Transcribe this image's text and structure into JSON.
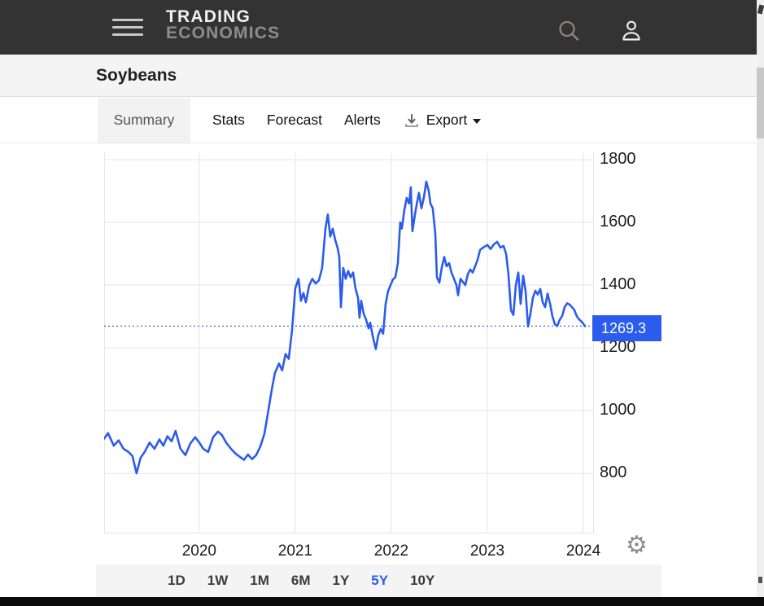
{
  "title": "Soybeans",
  "header": {
    "logo_line1": "TRADING",
    "logo_line2": "ECONOMICS"
  },
  "icons": {
    "menu": "hamburger",
    "search": "magnifier",
    "user": "person-silhouette",
    "export": "download-arrow-tray",
    "export_caret": "caret-down",
    "settings": "gear"
  },
  "tabs": [
    {
      "label": "Summary",
      "active": true
    },
    {
      "label": "Stats",
      "active": false
    },
    {
      "label": "Forecast",
      "active": false
    },
    {
      "label": "Alerts",
      "active": false
    }
  ],
  "export_button": {
    "label": "Export"
  },
  "range_buttons": {
    "items": [
      "1D",
      "1W",
      "1M",
      "6M",
      "1Y",
      "5Y",
      "10Y"
    ],
    "active": "5Y"
  },
  "colors": {
    "accent": "#2b5ced",
    "grid": "#e6e6e6",
    "header_bg": "#333333",
    "bar_bg": "#f4f4f4",
    "scroll_track": "#f0f0f0",
    "scroll_thumb": "#c8c8c8"
  },
  "chart_data": {
    "type": "line",
    "title": "",
    "series_name": "Soybeans",
    "current_value": 1269.3,
    "current_value_label": "1269.3",
    "y_ticks": [
      800,
      1000,
      1200,
      1400,
      1600,
      1800
    ],
    "x_ticks": [
      2020,
      2021,
      2022,
      2023,
      2024
    ],
    "xlim": [
      2019.01,
      2024.11
    ],
    "ylim": [
      608,
      1826
    ],
    "grid": true,
    "legend": "none",
    "points": [
      [
        2019.008,
        910
      ],
      [
        2019.051,
        928
      ],
      [
        2019.11,
        888
      ],
      [
        2019.161,
        905
      ],
      [
        2019.212,
        878
      ],
      [
        2019.263,
        868
      ],
      [
        2019.305,
        855
      ],
      [
        2019.347,
        800
      ],
      [
        2019.39,
        850
      ],
      [
        2019.432,
        868
      ],
      [
        2019.483,
        898
      ],
      [
        2019.534,
        878
      ],
      [
        2019.585,
        908
      ],
      [
        2019.627,
        888
      ],
      [
        2019.669,
        918
      ],
      [
        2019.712,
        902
      ],
      [
        2019.754,
        935
      ],
      [
        2019.805,
        878
      ],
      [
        2019.856,
        858
      ],
      [
        2019.907,
        895
      ],
      [
        2019.958,
        915
      ],
      [
        2020.0,
        898
      ],
      [
        2020.042,
        878
      ],
      [
        2020.093,
        868
      ],
      [
        2020.144,
        915
      ],
      [
        2020.195,
        933
      ],
      [
        2020.237,
        922
      ],
      [
        2020.28,
        898
      ],
      [
        2020.331,
        878
      ],
      [
        2020.381,
        862
      ],
      [
        2020.424,
        852
      ],
      [
        2020.466,
        843
      ],
      [
        2020.508,
        860
      ],
      [
        2020.551,
        845
      ],
      [
        2020.593,
        858
      ],
      [
        2020.636,
        885
      ],
      [
        2020.678,
        925
      ],
      [
        2020.72,
        1000
      ],
      [
        2020.754,
        1065
      ],
      [
        2020.788,
        1120
      ],
      [
        2020.831,
        1150
      ],
      [
        2020.864,
        1128
      ],
      [
        2020.898,
        1180
      ],
      [
        2020.932,
        1165
      ],
      [
        2020.966,
        1255
      ],
      [
        2021.0,
        1390
      ],
      [
        2021.034,
        1420
      ],
      [
        2021.059,
        1350
      ],
      [
        2021.085,
        1375
      ],
      [
        2021.11,
        1345
      ],
      [
        2021.144,
        1398
      ],
      [
        2021.178,
        1420
      ],
      [
        2021.212,
        1405
      ],
      [
        2021.246,
        1415
      ],
      [
        2021.28,
        1455
      ],
      [
        2021.314,
        1580
      ],
      [
        2021.339,
        1625
      ],
      [
        2021.364,
        1555
      ],
      [
        2021.39,
        1580
      ],
      [
        2021.415,
        1545
      ],
      [
        2021.441,
        1518
      ],
      [
        2021.458,
        1490
      ],
      [
        2021.475,
        1330
      ],
      [
        2021.5,
        1455
      ],
      [
        2021.525,
        1420
      ],
      [
        2021.551,
        1445
      ],
      [
        2021.576,
        1425
      ],
      [
        2021.602,
        1440
      ],
      [
        2021.627,
        1390
      ],
      [
        2021.653,
        1360
      ],
      [
        2021.669,
        1296
      ],
      [
        2021.686,
        1350
      ],
      [
        2021.712,
        1310
      ],
      [
        2021.737,
        1290
      ],
      [
        2021.763,
        1262
      ],
      [
        2021.78,
        1280
      ],
      [
        2021.805,
        1240
      ],
      [
        2021.822,
        1218
      ],
      [
        2021.839,
        1196
      ],
      [
        2021.864,
        1240
      ],
      [
        2021.89,
        1260
      ],
      [
        2021.915,
        1245
      ],
      [
        2021.941,
        1340
      ],
      [
        2021.966,
        1380
      ],
      [
        2021.992,
        1400
      ],
      [
        2022.017,
        1418
      ],
      [
        2022.042,
        1425
      ],
      [
        2022.068,
        1470
      ],
      [
        2022.093,
        1600
      ],
      [
        2022.11,
        1580
      ],
      [
        2022.136,
        1640
      ],
      [
        2022.161,
        1678
      ],
      [
        2022.186,
        1660
      ],
      [
        2022.203,
        1712
      ],
      [
        2022.22,
        1572
      ],
      [
        2022.246,
        1625
      ],
      [
        2022.263,
        1655
      ],
      [
        2022.288,
        1694
      ],
      [
        2022.314,
        1645
      ],
      [
        2022.339,
        1680
      ],
      [
        2022.364,
        1730
      ],
      [
        2022.39,
        1700
      ],
      [
        2022.407,
        1660
      ],
      [
        2022.432,
        1645
      ],
      [
        2022.458,
        1564
      ],
      [
        2022.475,
        1425
      ],
      [
        2022.5,
        1408
      ],
      [
        2022.525,
        1455
      ],
      [
        2022.551,
        1490
      ],
      [
        2022.576,
        1460
      ],
      [
        2022.602,
        1470
      ],
      [
        2022.627,
        1440
      ],
      [
        2022.653,
        1420
      ],
      [
        2022.678,
        1400
      ],
      [
        2022.695,
        1368
      ],
      [
        2022.72,
        1420
      ],
      [
        2022.746,
        1410
      ],
      [
        2022.771,
        1400
      ],
      [
        2022.797,
        1435
      ],
      [
        2022.822,
        1450
      ],
      [
        2022.847,
        1440
      ],
      [
        2022.873,
        1460
      ],
      [
        2022.898,
        1480
      ],
      [
        2022.924,
        1512
      ],
      [
        2022.958,
        1520
      ],
      [
        2023.0,
        1528
      ],
      [
        2023.034,
        1515
      ],
      [
        2023.068,
        1530
      ],
      [
        2023.102,
        1538
      ],
      [
        2023.136,
        1520
      ],
      [
        2023.169,
        1525
      ],
      [
        2023.195,
        1500
      ],
      [
        2023.22,
        1435
      ],
      [
        2023.246,
        1320
      ],
      [
        2023.271,
        1305
      ],
      [
        2023.297,
        1400
      ],
      [
        2023.322,
        1440
      ],
      [
        2023.347,
        1340
      ],
      [
        2023.373,
        1430
      ],
      [
        2023.398,
        1380
      ],
      [
        2023.424,
        1268
      ],
      [
        2023.449,
        1310
      ],
      [
        2023.475,
        1360
      ],
      [
        2023.5,
        1382
      ],
      [
        2023.525,
        1370
      ],
      [
        2023.551,
        1388
      ],
      [
        2023.576,
        1345
      ],
      [
        2023.602,
        1330
      ],
      [
        2023.627,
        1373
      ],
      [
        2023.653,
        1340
      ],
      [
        2023.678,
        1300
      ],
      [
        2023.703,
        1275
      ],
      [
        2023.729,
        1270
      ],
      [
        2023.754,
        1290
      ],
      [
        2023.78,
        1302
      ],
      [
        2023.805,
        1330
      ],
      [
        2023.831,
        1342
      ],
      [
        2023.856,
        1338
      ],
      [
        2023.881,
        1330
      ],
      [
        2023.907,
        1320
      ],
      [
        2023.932,
        1300
      ],
      [
        2023.958,
        1290
      ],
      [
        2023.983,
        1283
      ],
      [
        2024.017,
        1269.3
      ]
    ]
  }
}
